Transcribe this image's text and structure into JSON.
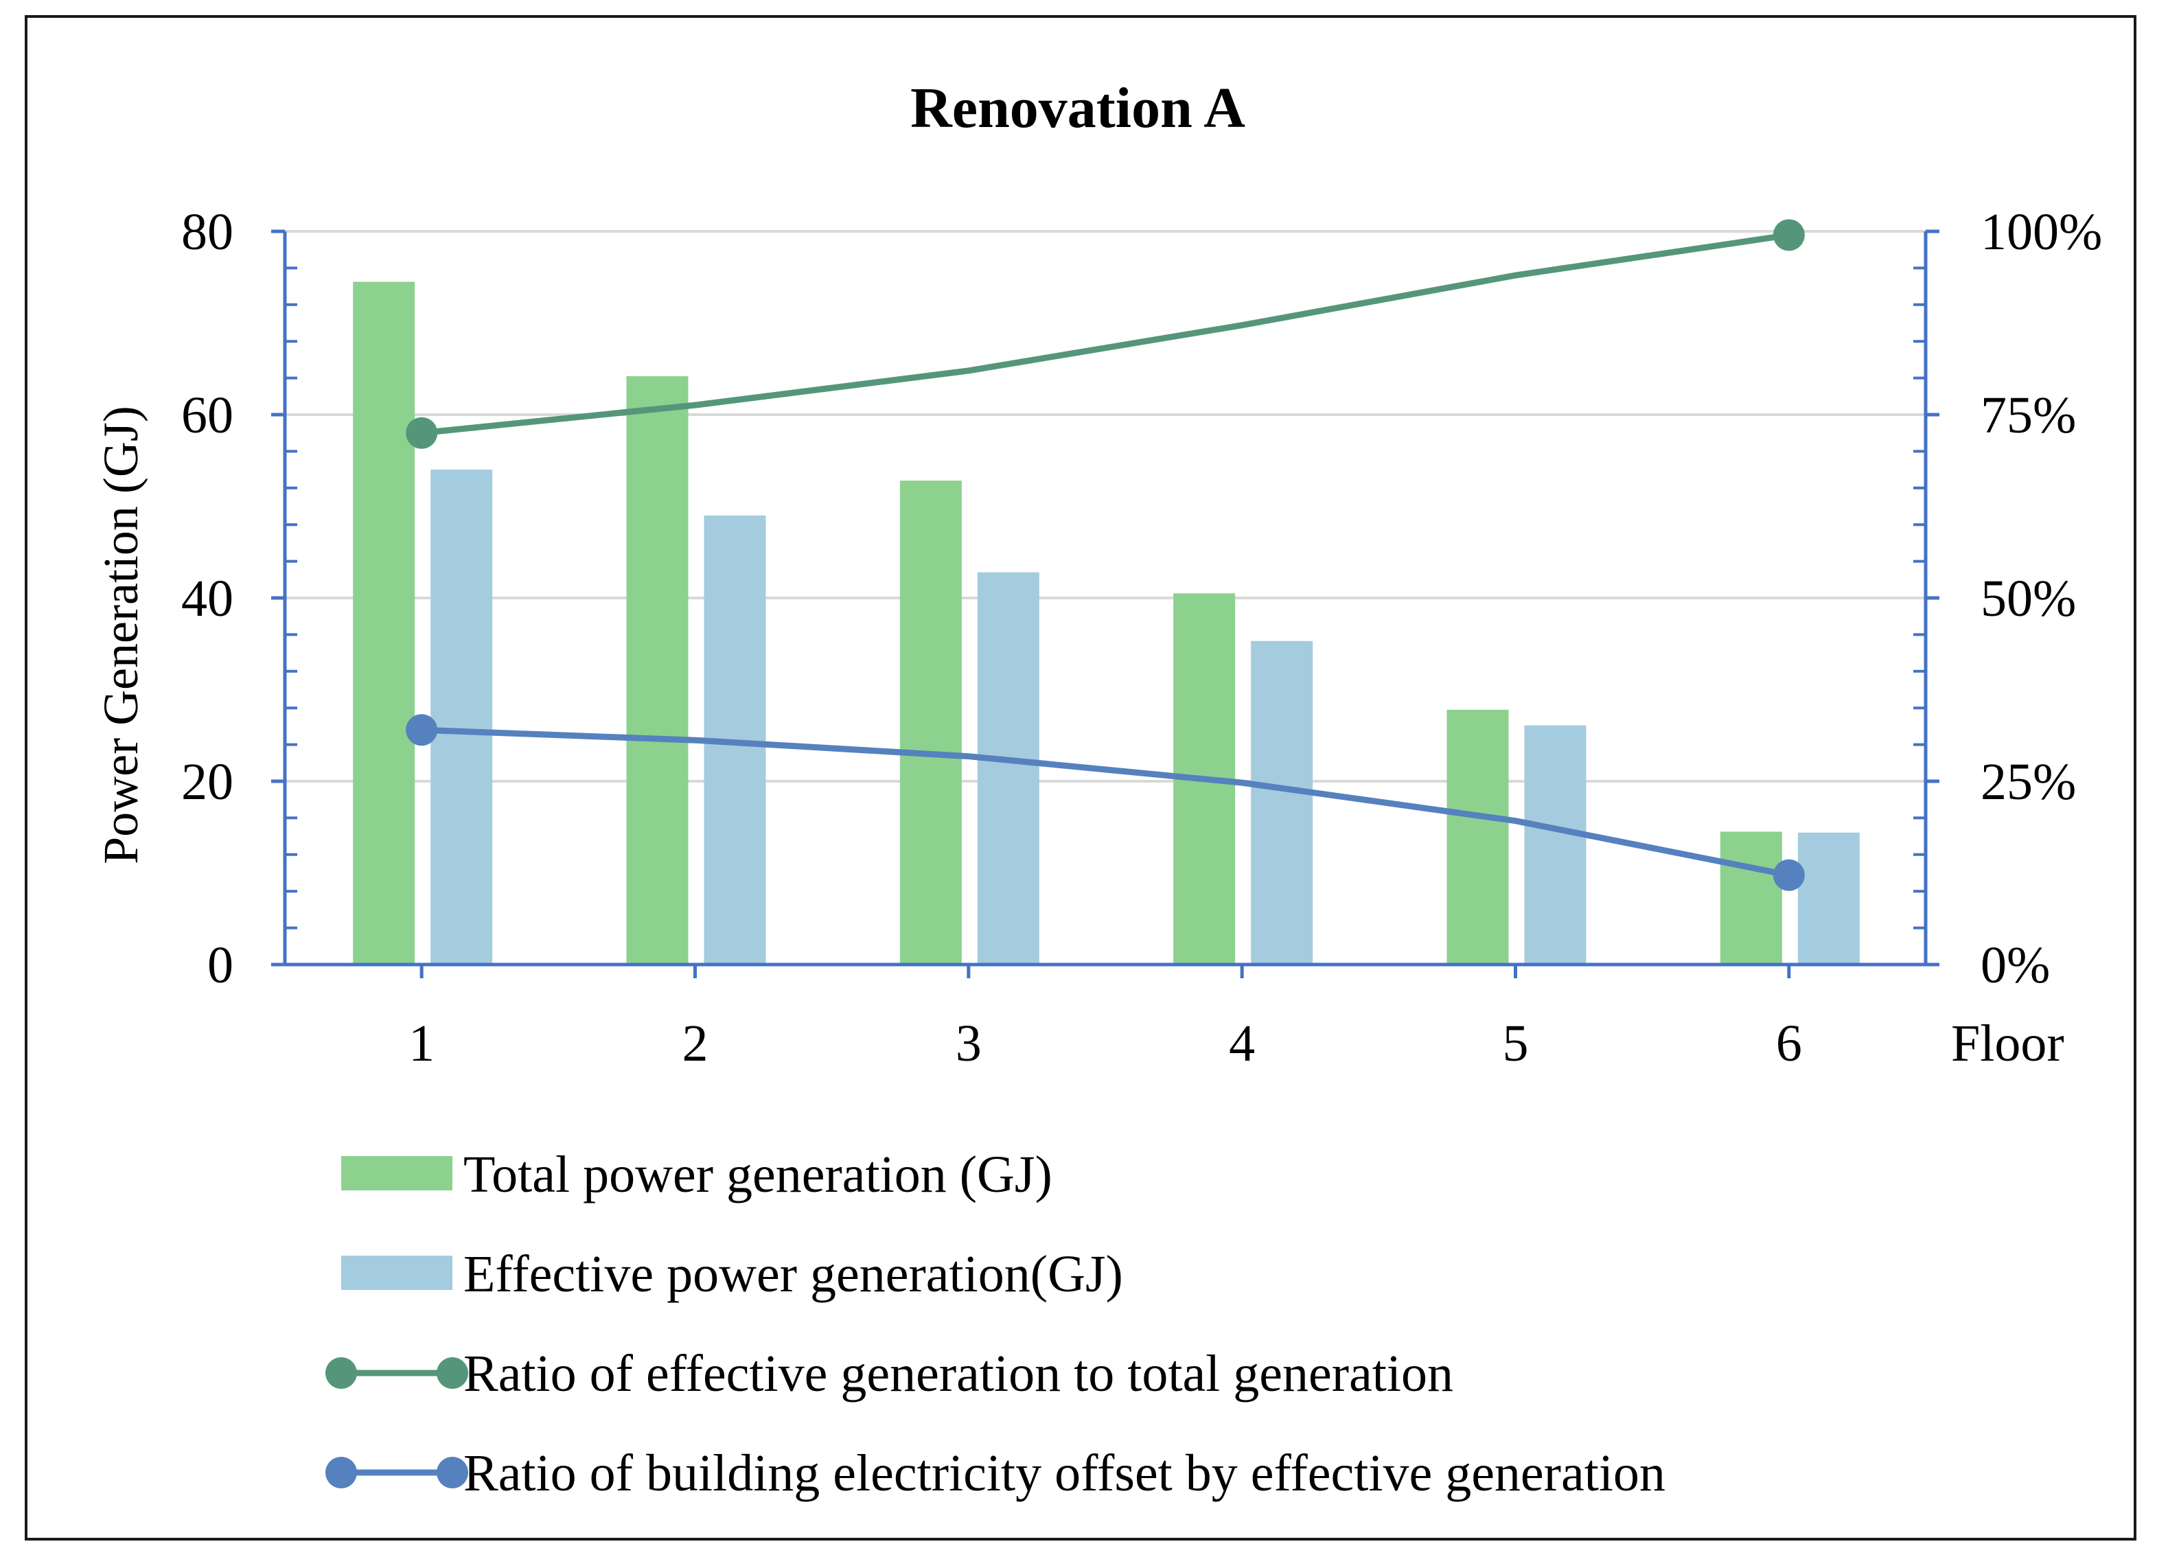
{
  "chart_data": {
    "type": "bar",
    "title": "Renovation A",
    "xlabel": "Floor",
    "ylabel": "Power Generation (GJ)",
    "categories": [
      "1",
      "2",
      "3",
      "4",
      "5",
      "6"
    ],
    "ylim": [
      0,
      80
    ],
    "y_ticks": [
      "0",
      "20",
      "40",
      "60",
      "80"
    ],
    "y2lim": [
      0,
      1
    ],
    "y2_ticks": [
      "0%",
      "25%",
      "50%",
      "75%",
      "100%"
    ],
    "grid": "horizontal",
    "legend_position": "bottom",
    "series": [
      {
        "name": "Total power generation (GJ)",
        "kind": "bar",
        "axis": "left",
        "color": "#8dd18f",
        "values": [
          74.5,
          64.2,
          52.8,
          40.5,
          27.8,
          14.5
        ]
      },
      {
        "name": "Effective power generation(GJ)",
        "kind": "bar",
        "axis": "left",
        "color": "#a5cbdf",
        "values": [
          54.0,
          49.0,
          42.8,
          35.3,
          26.1,
          14.4
        ]
      },
      {
        "name": "Ratio of effective generation to total generation",
        "kind": "line",
        "axis": "right",
        "color": "#55967a",
        "values": [
          0.725,
          0.763,
          0.81,
          0.872,
          0.94,
          0.995
        ],
        "markers": [
          0,
          5
        ]
      },
      {
        "name": "Ratio of building electricity offset by effective generation",
        "kind": "line",
        "axis": "right",
        "color": "#5581be",
        "values": [
          0.32,
          0.306,
          0.284,
          0.248,
          0.196,
          0.122
        ],
        "markers": [
          0,
          5
        ]
      }
    ]
  }
}
